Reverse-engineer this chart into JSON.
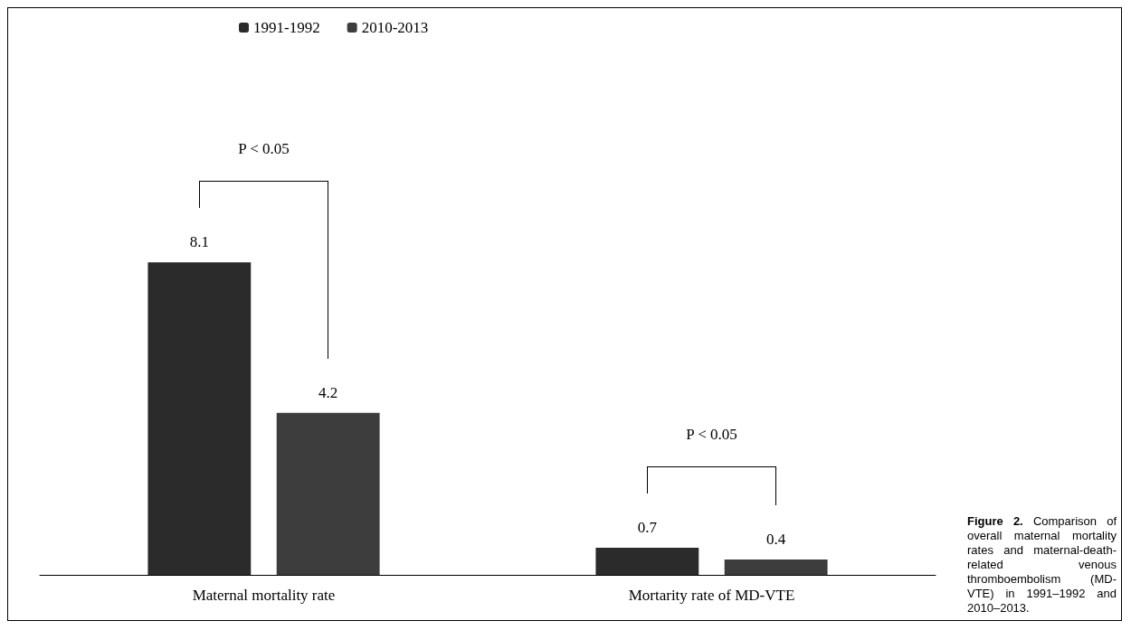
{
  "chart_data": {
    "type": "bar",
    "categories": [
      "Maternal mortality rate",
      "Mortarity rate of MD-VTE"
    ],
    "series": [
      {
        "name": "1991-1992",
        "color": "#2b2b2b",
        "values": [
          8.1,
          0.7
        ]
      },
      {
        "name": "2010-2013",
        "color": "#3d3d3d",
        "values": [
          4.2,
          0.4
        ]
      }
    ],
    "data_labels": true,
    "legend": "top left",
    "grid": false,
    "annotations": [
      "P < 0.05",
      "P < 0.05",
      "Figure 2. Comparison of overall maternal mortality rates and maternal-death-related venous thromboembolism (MD-VTE) in 1991–1992 and 2010–2013."
    ]
  }
}
